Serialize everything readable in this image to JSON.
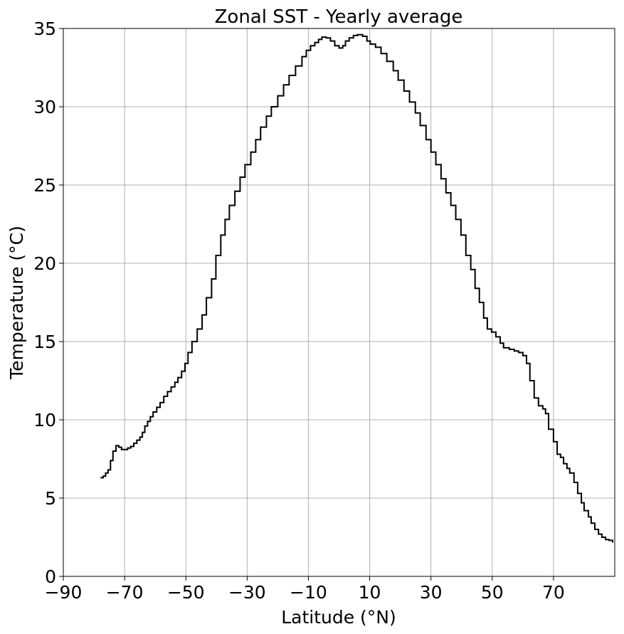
{
  "chart_data": {
    "type": "step",
    "title": "Zonal SST - Yearly average",
    "x_label": "Latitude (°N)",
    "y_label": "Temperature (°C)",
    "color": "#000000",
    "grid": true,
    "xlim": [
      -90,
      90
    ],
    "ylim": [
      0,
      35
    ],
    "xticks": [
      {
        "value": -90,
        "label": "−90"
      },
      {
        "value": -70,
        "label": "−70"
      },
      {
        "value": -50,
        "label": "−50"
      },
      {
        "value": -30,
        "label": "−30"
      },
      {
        "value": -10,
        "label": "−10"
      },
      10,
      30,
      50,
      70
    ],
    "yticks": [
      0,
      5,
      10,
      15,
      20,
      25,
      30,
      35
    ],
    "x": [
      -77.9,
      -77,
      -76.2,
      -75.4,
      -74.6,
      -73.8,
      -72.8,
      -71.9,
      -71,
      -70,
      -69,
      -68,
      -67,
      -66,
      -65,
      -64.2,
      -63.4,
      -62.5,
      -61.6,
      -60.7,
      -59.5,
      -58.4,
      -57.2,
      -56,
      -54.8,
      -53.6,
      -52.6,
      -51.4,
      -50.3,
      -49.3,
      -48,
      -46.3,
      -44.7,
      -43.3,
      -41.6,
      -40.2,
      -38.6,
      -37.2,
      -35.8,
      -34,
      -32.3,
      -30.7,
      -28.8,
      -27.2,
      -25.6,
      -23.7,
      -22.1,
      -20,
      -18.1,
      -16.3,
      -14.2,
      -12.1,
      -10.7,
      -9.3,
      -7.9,
      -6.7,
      -5.6,
      -4.2,
      -2.8,
      -1.4,
      0,
      1.2,
      2.1,
      3.3,
      4.7,
      6,
      7.7,
      9.1,
      10.2,
      11.9,
      13.7,
      15.6,
      17.7,
      19.3,
      21.2,
      23,
      24.9,
      26.5,
      28.4,
      30,
      31.6,
      33.3,
      34.9,
      36.5,
      38.1,
      39.8,
      41.4,
      43,
      44.4,
      45.8,
      47.2,
      48.4,
      49.8,
      51.2,
      52.6,
      53.7,
      55.6,
      57.2,
      58.6,
      60,
      61.2,
      62.3,
      63.7,
      65.1,
      66.5,
      67.4,
      68.4,
      70,
      71.2,
      72.3,
      73.3,
      74.4,
      75.3,
      76.7,
      77.9,
      79.1,
      80,
      81.4,
      82.3,
      83.5,
      84.7,
      85.8,
      87,
      88.1,
      89.3
    ],
    "values": [
      6.3,
      6.4,
      6.6,
      6.8,
      7.4,
      8.0,
      8.35,
      8.25,
      8.1,
      8.1,
      8.2,
      8.3,
      8.5,
      8.7,
      8.9,
      9.2,
      9.6,
      9.9,
      10.2,
      10.5,
      10.8,
      11.1,
      11.5,
      11.8,
      12.1,
      12.4,
      12.7,
      13.1,
      13.6,
      14.3,
      15.0,
      15.8,
      16.7,
      17.8,
      19.0,
      20.5,
      21.8,
      22.8,
      23.7,
      24.6,
      25.5,
      26.3,
      27.1,
      27.9,
      28.7,
      29.4,
      30.0,
      30.7,
      31.4,
      32.0,
      32.6,
      33.2,
      33.6,
      33.9,
      34.1,
      34.3,
      34.45,
      34.4,
      34.2,
      33.9,
      33.75,
      33.9,
      34.2,
      34.4,
      34.55,
      34.6,
      34.5,
      34.2,
      34.0,
      33.8,
      33.4,
      32.9,
      32.3,
      31.7,
      31.0,
      30.3,
      29.6,
      28.8,
      27.9,
      27.1,
      26.3,
      25.4,
      24.5,
      23.7,
      22.8,
      21.8,
      20.5,
      19.6,
      18.4,
      17.5,
      16.5,
      15.8,
      15.6,
      15.3,
      14.9,
      14.6,
      14.5,
      14.4,
      14.3,
      14.1,
      13.6,
      12.5,
      11.4,
      10.9,
      10.7,
      10.4,
      9.4,
      8.6,
      7.8,
      7.6,
      7.2,
      6.9,
      6.6,
      6.0,
      5.3,
      4.7,
      4.2,
      3.8,
      3.4,
      3.0,
      2.7,
      2.5,
      2.35,
      2.3,
      2.2
    ]
  }
}
